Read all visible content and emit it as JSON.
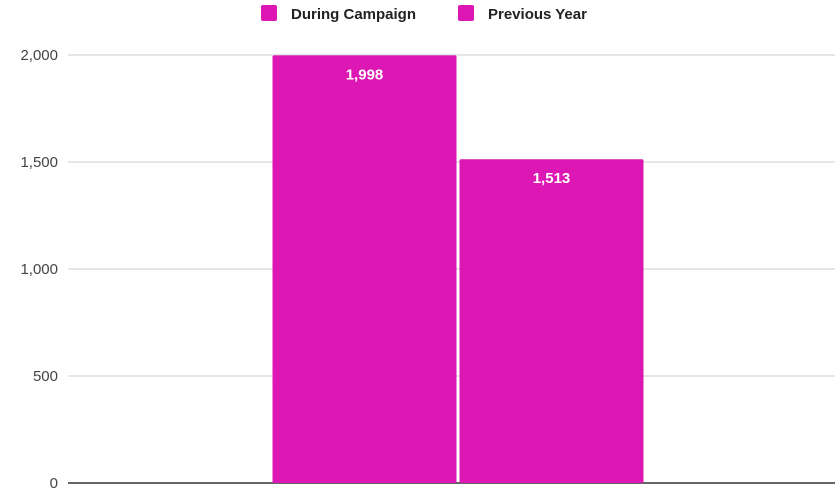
{
  "chart_data": {
    "type": "bar",
    "title": "",
    "xlabel": "",
    "ylabel": "",
    "categories": [
      ""
    ],
    "series": [
      {
        "name": "During Campaign",
        "values": [
          1998
        ],
        "color": "#dd17b3"
      },
      {
        "name": "Previous Year",
        "values": [
          1513
        ],
        "color": "#dd17b3"
      }
    ],
    "ylim": [
      0,
      2000
    ],
    "yticks": [
      0,
      500,
      1000,
      1500,
      2000
    ],
    "ytick_labels": [
      "0",
      "500",
      "1,000",
      "1,500",
      "2,000"
    ],
    "data_labels": [
      "1,998",
      "1,513"
    ],
    "grid": true,
    "legend_position": "top"
  }
}
